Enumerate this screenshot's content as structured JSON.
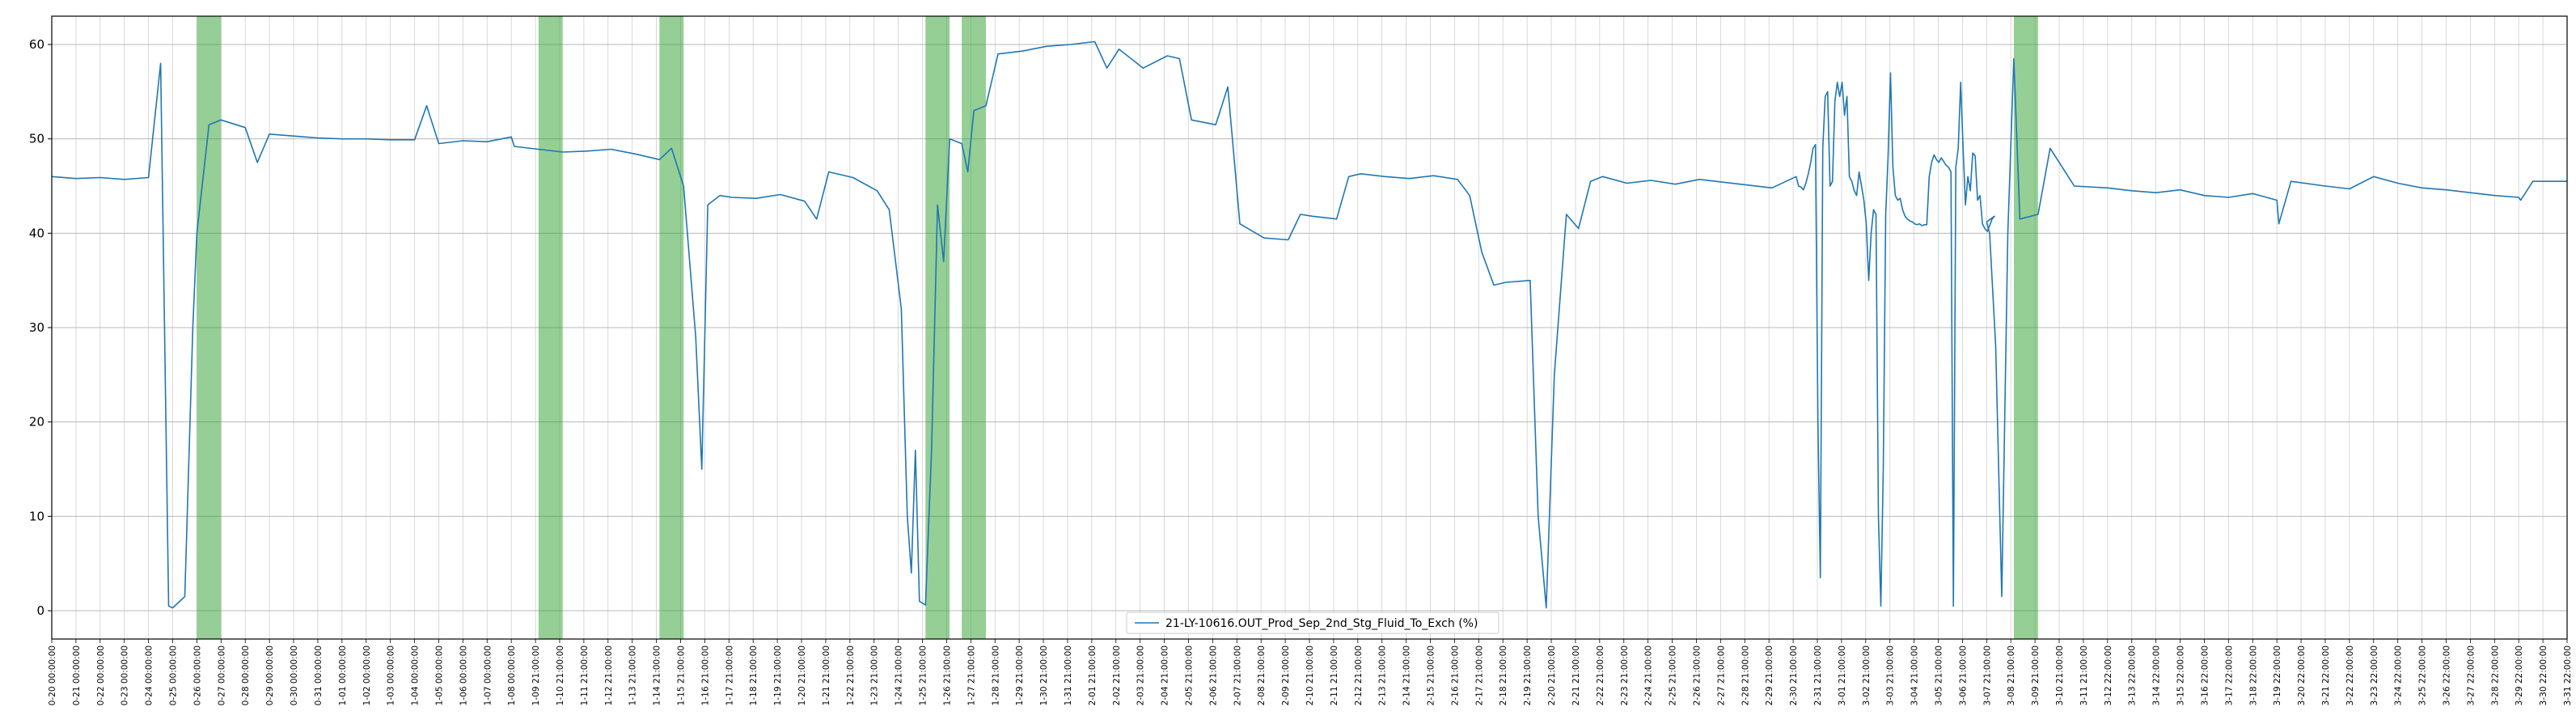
{
  "chart_data": {
    "type": "line",
    "title": "",
    "xlabel": "",
    "ylabel": "",
    "x_range": [
      "0-20 00:00:00",
      "3-31 22:00:00"
    ],
    "ylim": [
      -3,
      63
    ],
    "y_ticks": [
      0,
      10,
      20,
      30,
      40,
      50,
      60
    ],
    "grid": true,
    "legend_location": "bottom-center",
    "series": [
      {
        "name": "21-LY-10616.OUT_Prod_Sep_2nd_Stg_Fluid_To_Exch (%)",
        "color": "#1f77b4",
        "points": [
          [
            "0-20 00:00:00",
            46.0
          ],
          [
            "0-21 00:00:00",
            45.8
          ],
          [
            "0-22 00:00:00",
            45.9
          ],
          [
            "0-23 00:00:00",
            45.7
          ],
          [
            "0-24 00:00:00",
            45.9
          ],
          [
            "0-24 12:00:00",
            58.0
          ],
          [
            "0-24 20:00:00",
            0.5
          ],
          [
            "0-25 00:00:00",
            0.3
          ],
          [
            "0-25 12:00:00",
            1.5
          ],
          [
            "0-25 20:00:00",
            30.0
          ],
          [
            "0-26 00:00:00",
            40.0
          ],
          [
            "0-26 12:00:00",
            51.5
          ],
          [
            "0-27 00:00:00",
            52.0
          ],
          [
            "0-28 00:00:00",
            51.2
          ],
          [
            "0-28 12:00:00",
            47.5
          ],
          [
            "0-29 00:00:00",
            50.5
          ],
          [
            "0-30 00:00:00",
            50.3
          ],
          [
            "0-31 00:00:00",
            50.1
          ],
          [
            "1-01 00:00:00",
            50.0
          ],
          [
            "1-02 00:00:00",
            50.0
          ],
          [
            "1-03 00:00:00",
            49.9
          ],
          [
            "1-04 00:00:00",
            49.9
          ],
          [
            "1-04 12:00:00",
            53.5
          ],
          [
            "1-05 00:00:00",
            49.5
          ],
          [
            "1-06 00:00:00",
            49.8
          ],
          [
            "1-07 00:00:00",
            49.7
          ],
          [
            "1-08 00:00:00",
            50.2
          ],
          [
            "1-09 00:00:00",
            49.2
          ],
          [
            "1-10 00:00:00",
            48.9
          ],
          [
            "1-11 00:00:00",
            48.6
          ],
          [
            "1-12 00:00:00",
            48.7
          ],
          [
            "1-13 00:00:00",
            48.9
          ],
          [
            "1-14 00:00:00",
            48.4
          ],
          [
            "1-15 00:00:00",
            47.8
          ],
          [
            "1-15 12:00:00",
            49.0
          ],
          [
            "1-16 00:00:00",
            45.0
          ],
          [
            "1-16 12:00:00",
            29.0
          ],
          [
            "1-16 18:00:00",
            15.0
          ],
          [
            "1-17 00:00:00",
            43.0
          ],
          [
            "1-17 12:00:00",
            44.0
          ],
          [
            "1-18 00:00:00",
            43.8
          ],
          [
            "1-19 00:00:00",
            43.7
          ],
          [
            "1-20 00:00:00",
            44.1
          ],
          [
            "1-21 00:00:00",
            43.4
          ],
          [
            "1-21 12:00:00",
            41.5
          ],
          [
            "1-22 00:00:00",
            46.5
          ],
          [
            "1-23 00:00:00",
            45.9
          ],
          [
            "1-24 00:00:00",
            44.5
          ],
          [
            "1-24 12:00:00",
            42.5
          ],
          [
            "1-25 00:00:00",
            32.0
          ],
          [
            "1-25 06:00:00",
            10.0
          ],
          [
            "1-25 10:00:00",
            4.0
          ],
          [
            "1-25 14:00:00",
            17.0
          ],
          [
            "1-25 18:00:00",
            1.0
          ],
          [
            "1-26 00:00:00",
            0.6
          ],
          [
            "1-26 06:00:00",
            17.0
          ],
          [
            "1-26 12:00:00",
            43.0
          ],
          [
            "1-26 18:00:00",
            37.0
          ],
          [
            "1-27 00:00:00",
            50.0
          ],
          [
            "1-27 12:00:00",
            49.5
          ],
          [
            "1-27 18:00:00",
            46.5
          ],
          [
            "1-28 00:00:00",
            53.0
          ],
          [
            "1-28 12:00:00",
            53.5
          ],
          [
            "1-29 00:00:00",
            59.0
          ],
          [
            "1-30 00:00:00",
            59.3
          ],
          [
            "1-31 00:00:00",
            59.8
          ],
          [
            "2-01 00:00:00",
            60.0
          ],
          [
            "2-02 00:00:00",
            60.3
          ],
          [
            "2-02 12:00:00",
            57.5
          ],
          [
            "2-03 00:00:00",
            59.5
          ],
          [
            "2-04 00:00:00",
            57.5
          ],
          [
            "2-05 00:00:00",
            58.8
          ],
          [
            "2-05 12:00:00",
            58.5
          ],
          [
            "2-06 00:00:00",
            52.0
          ],
          [
            "2-07 00:00:00",
            51.5
          ],
          [
            "2-07 12:00:00",
            55.5
          ],
          [
            "2-08 00:00:00",
            41.0
          ],
          [
            "2-09 00:00:00",
            39.5
          ],
          [
            "2-10 00:00:00",
            39.3
          ],
          [
            "2-10 12:00:00",
            42.0
          ],
          [
            "2-11 00:00:00",
            41.8
          ],
          [
            "2-12 00:00:00",
            41.5
          ],
          [
            "2-12 12:00:00",
            46.0
          ],
          [
            "2-13 00:00:00",
            46.3
          ],
          [
            "2-14 00:00:00",
            46.0
          ],
          [
            "2-15 00:00:00",
            45.8
          ],
          [
            "2-16 00:00:00",
            46.1
          ],
          [
            "2-17 00:00:00",
            45.7
          ],
          [
            "2-17 12:00:00",
            44.0
          ],
          [
            "2-18 00:00:00",
            38.0
          ],
          [
            "2-18 12:00:00",
            34.5
          ],
          [
            "2-19 00:00:00",
            34.8
          ],
          [
            "2-20 00:00:00",
            35.0
          ],
          [
            "2-20 08:00:00",
            10.0
          ],
          [
            "2-20 16:00:00",
            0.3
          ],
          [
            "2-21 00:00:00",
            25.0
          ],
          [
            "2-21 12:00:00",
            42.0
          ],
          [
            "2-22 00:00:00",
            40.5
          ],
          [
            "2-22 12:00:00",
            45.5
          ],
          [
            "2-23 00:00:00",
            46.0
          ],
          [
            "2-24 00:00:00",
            45.3
          ],
          [
            "2-25 00:00:00",
            45.6
          ],
          [
            "2-26 00:00:00",
            45.2
          ],
          [
            "2-27 00:00:00",
            45.7
          ],
          [
            "2-28 00:00:00",
            45.4
          ],
          [
            "2-29 00:00:00",
            45.1
          ],
          [
            "2-30 00:00:00",
            44.8
          ],
          [
            "2-31 00:00:00",
            46.0
          ],
          [
            "1-01 21:00:00",
            45.0
          ],
          [
            "1-02 21:00:00",
            44.9
          ],
          [
            "1-03 21:00:00",
            44.6
          ],
          [
            "1-04 21:00:00",
            45.3
          ],
          [
            "1-05 21:00:00",
            46.3
          ],
          [
            "1-06 21:00:00",
            47.5
          ],
          [
            "1-07 21:00:00",
            49.0
          ],
          [
            "1-08 00:00:00",
            49.4
          ],
          [
            "1-08 06:00:00",
            20.0
          ],
          [
            "1-08 12:00:00",
            3.5
          ],
          [
            "1-08 18:00:00",
            49.0
          ],
          [
            "1-09 21:00:00",
            54.5
          ],
          [
            "1-10 00:00:00",
            55.0
          ],
          [
            "1-10 12:00:00",
            45.0
          ],
          [
            "1-11 00:00:00",
            45.5
          ],
          [
            "1-11 12:00:00",
            54.0
          ],
          [
            "1-12 21:00:00",
            56.0
          ],
          [
            "1-13 21:00:00",
            54.5
          ],
          [
            "1-14 21:00:00",
            56.0
          ],
          [
            "1-15 21:00:00",
            52.5
          ],
          [
            "1-16 12:00:00",
            54.5
          ],
          [
            "1-17 00:00:00",
            46.0
          ],
          [
            "1-18 21:00:00",
            45.5
          ],
          [
            "1-19 21:00:00",
            44.5
          ],
          [
            "1-20 21:00:00",
            44.0
          ],
          [
            "1-21 12:00:00",
            46.5
          ],
          [
            "1-22 21:00:00",
            45.0
          ],
          [
            "1-23 21:00:00",
            43.5
          ],
          [
            "1-24 00:00:00",
            41.0
          ],
          [
            "1-24 12:00:00",
            35.0
          ],
          [
            "1-25 00:00:00",
            40.0
          ],
          [
            "1-25 12:00:00",
            42.5
          ],
          [
            "1-26 00:00:00",
            42.0
          ],
          [
            "1-26 12:00:00",
            10.0
          ],
          [
            "1-26 18:00:00",
            0.5
          ],
          [
            "1-27 00:00:00",
            15.0
          ],
          [
            "1-27 12:00:00",
            42.0
          ],
          [
            "1-28 00:00:00",
            48.0
          ],
          [
            "1-28 12:00:00",
            57.0
          ],
          [
            "1-29 00:00:00",
            47.0
          ],
          [
            "1-30 21:00:00",
            44.0
          ],
          [
            "1-31 21:00:00",
            43.5
          ],
          [
            "2-01 21:00:00",
            43.7
          ],
          [
            "2-02 21:00:00",
            42.5
          ],
          [
            "2-03 21:00:00",
            41.8
          ],
          [
            "2-04 21:00:00",
            41.5
          ],
          [
            "2-05 21:00:00",
            41.3
          ],
          [
            "2-06 21:00:00",
            41.2
          ],
          [
            "2-07 21:00:00",
            41.0
          ],
          [
            "2-08 21:00:00",
            40.9
          ],
          [
            "2-09 21:00:00",
            41.0
          ],
          [
            "2-10 21:00:00",
            40.8
          ],
          [
            "2-11 21:00:00",
            40.9
          ],
          [
            "2-12 21:00:00",
            40.9
          ],
          [
            "2-13 00:00:00",
            46.0
          ],
          [
            "2-14 21:00:00",
            47.5
          ],
          [
            "2-15 21:00:00",
            48.3
          ],
          [
            "2-16 21:00:00",
            47.8
          ],
          [
            "2-17 21:00:00",
            47.5
          ],
          [
            "2-18 21:00:00",
            48.0
          ],
          [
            "2-19 21:00:00",
            47.6
          ],
          [
            "2-20 21:00:00",
            47.2
          ],
          [
            "2-21 21:00:00",
            47.0
          ],
          [
            "2-22 12:00:00",
            46.5
          ],
          [
            "2-22 18:00:00",
            0.5
          ],
          [
            "2-23 00:00:00",
            47.0
          ],
          [
            "2-24 00:00:00",
            49.0
          ],
          [
            "2-24 12:00:00",
            56.0
          ],
          [
            "2-25 00:00:00",
            49.0
          ],
          [
            "2-25 12:00:00",
            43.0
          ],
          [
            "2-26 00:00:00",
            46.0
          ],
          [
            "2-26 12:00:00",
            44.5
          ],
          [
            "2-27 12:00:00",
            48.5
          ],
          [
            "2-28 00:00:00",
            48.2
          ],
          [
            "2-28 12:00:00",
            43.5
          ],
          [
            "3-01 00:00:00",
            44.0
          ],
          [
            "3-01 12:00:00",
            41.0
          ],
          [
            "3-02 21:00:00",
            40.5
          ],
          [
            "3-03 21:00:00",
            40.2
          ],
          [
            "3-04 21:00:00",
            40.8
          ],
          [
            "3-05 21:00:00",
            41.5
          ],
          [
            "3-06 21:00:00",
            41.8
          ],
          [
            "3-07 21:00:00",
            41.2
          ],
          [
            "3-08 00:00:00",
            40.0
          ],
          [
            "3-08 06:00:00",
            28.0
          ],
          [
            "3-08 12:00:00",
            1.5
          ],
          [
            "3-08 18:00:00",
            40.0
          ],
          [
            "3-09 00:00:00",
            58.5
          ],
          [
            "3-09 06:00:00",
            41.5
          ],
          [
            "3-10 00:00:00",
            42.0
          ],
          [
            "3-10 12:00:00",
            49.0
          ],
          [
            "3-11 00:00:00",
            47.0
          ],
          [
            "3-11 12:00:00",
            45.0
          ],
          [
            "3-12 22:00:00",
            44.8
          ],
          [
            "3-13 22:00:00",
            44.5
          ],
          [
            "3-14 22:00:00",
            44.3
          ],
          [
            "3-15 22:00:00",
            44.6
          ],
          [
            "3-16 22:00:00",
            44.0
          ],
          [
            "3-17 22:00:00",
            43.8
          ],
          [
            "3-18 22:00:00",
            44.2
          ],
          [
            "3-19 22:00:00",
            43.5
          ],
          [
            "3-20 00:00:00",
            41.0
          ],
          [
            "3-20 12:00:00",
            45.5
          ],
          [
            "3-21 22:00:00",
            45.0
          ],
          [
            "3-22 22:00:00",
            44.7
          ],
          [
            "3-23 22:00:00",
            46.0
          ],
          [
            "3-24 22:00:00",
            45.3
          ],
          [
            "3-25 22:00:00",
            44.8
          ],
          [
            "3-26 22:00:00",
            44.6
          ],
          [
            "3-27 22:00:00",
            44.3
          ],
          [
            "3-28 22:00:00",
            44.0
          ],
          [
            "3-29 22:00:00",
            43.8
          ],
          [
            "3-30 00:00:00",
            43.5
          ],
          [
            "3-30 12:00:00",
            45.5
          ],
          [
            "3-31 22:00:00",
            45.5
          ]
        ]
      }
    ],
    "highlight_color": "#2ca02c",
    "highlight_spans": [
      [
        "0-26 00:00:00",
        "0-27 00:00:00"
      ],
      [
        "1-10 00:00:00",
        "1-11 00:00:00"
      ],
      [
        "1-15 00:00:00",
        "1-16 00:00:00"
      ],
      [
        "1-26 00:00:00",
        "1-27 00:00:00"
      ],
      [
        "1-27 12:00:00",
        "1-28 12:00:00"
      ],
      [
        "3-09 00:00:00",
        "3-10 00:00:00"
      ]
    ]
  }
}
